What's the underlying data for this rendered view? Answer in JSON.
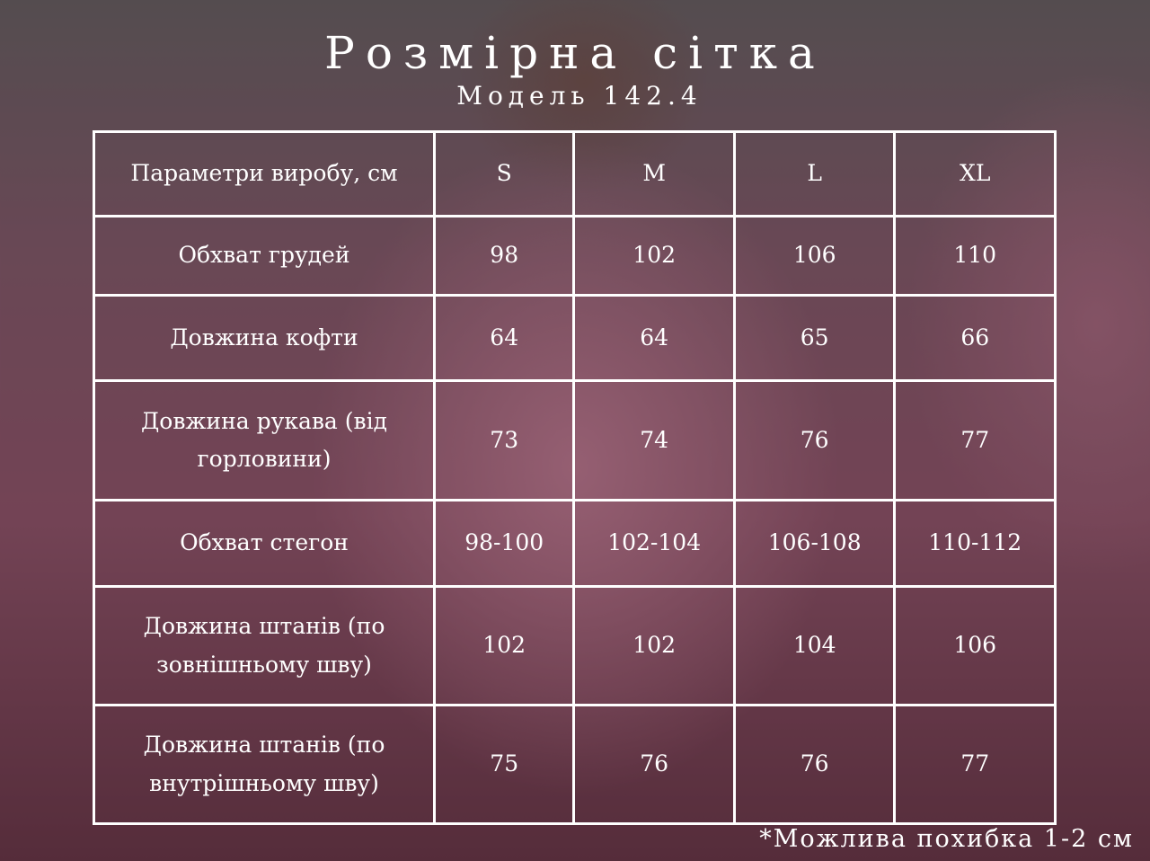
{
  "title": "Розмірна сітка",
  "subtitle": "Модель 142.4",
  "table": {
    "header": [
      "Параметри виробу, см",
      "S",
      "M",
      "L",
      "XL"
    ],
    "rows": [
      [
        "Обхват грудей",
        "98",
        "102",
        "106",
        "110"
      ],
      [
        "Довжина кофти",
        "64",
        "64",
        "65",
        "66"
      ],
      [
        "Довжина рукава (від горловини)",
        "73",
        "74",
        "76",
        "77"
      ],
      [
        "Обхват стегон",
        "98-100",
        "102-104",
        "106-108",
        "110-112"
      ],
      [
        "Довжина штанів (по зовнішньому шву)",
        "102",
        "102",
        "104",
        "106"
      ],
      [
        "Довжина штанів (по внутрішньому шву)",
        "75",
        "76",
        "76",
        "77"
      ]
    ]
  },
  "note": "*Можлива похибка 1-2 см"
}
